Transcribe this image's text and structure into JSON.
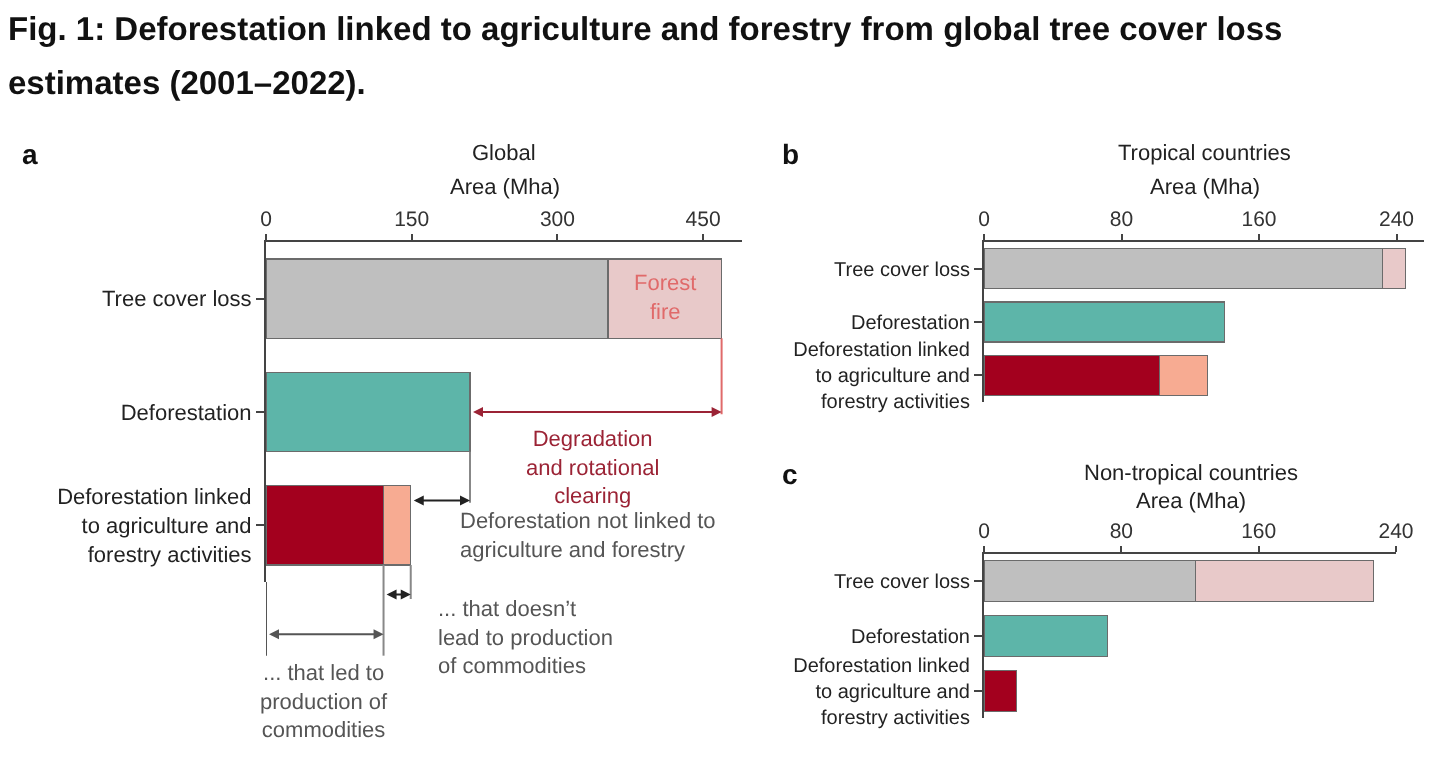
{
  "chart_data": [
    {
      "type": "bar",
      "title": "Global",
      "xlabel": "Area (Mha)",
      "orientation": "horizontal",
      "stacked": true,
      "categories": [
        "Tree cover loss",
        "Deforestation",
        "Deforestation linked to agriculture and forestry activities"
      ],
      "series": [
        {
          "colors": [
            "#bfbfbf",
            "#5db5a9",
            "#a3001e"
          ],
          "values": [
            352,
            210,
            121
          ]
        },
        {
          "colors": [
            "#e8c9c9",
            null,
            "#f7ab92"
          ],
          "values": [
            117,
            null,
            28
          ]
        }
      ],
      "xlim": [
        0,
        490
      ],
      "xticks": [
        0,
        150,
        300,
        450
      ],
      "annotations": [
        "Fig. 1: Deforestation linked to agriculture and forestry from global tree cover loss estimates (2001–2022).",
        "a",
        {
          "text": "Forest fire",
          "x": 410,
          "y": "Tree cover loss"
        },
        "Degradation and rotational clearing",
        {
          "text": "Deforestation not linked to agriculture and forestry",
          "x": 149,
          "y": "Deforestation linked to agriculture and forestry activities"
        },
        "... that doesn’t lead to production of commodities",
        {
          "text": "... that led to production of commodities",
          "x": 121,
          "y": "Deforestation linked to agriculture and forestry activities"
        }
      ]
    },
    {
      "type": "bar",
      "title": "Tropical countries",
      "xlabel": "Area (Mha)",
      "orientation": "horizontal",
      "stacked": true,
      "categories": [
        "Tree cover loss",
        "Deforestation",
        "Deforestation linked to agriculture and forestry activities"
      ],
      "series": [
        {
          "colors": [
            "#bfbfbf",
            "#5db5a9",
            "#a3001e"
          ],
          "values": [
            232,
            140,
            102
          ]
        },
        {
          "colors": [
            "#e8c9c9",
            null,
            "#f7ab92"
          ],
          "values": [
            13,
            null,
            28
          ]
        }
      ],
      "xlim": [
        0,
        256
      ],
      "xticks": [
        0,
        80,
        160,
        240
      ],
      "annotations": [
        "b"
      ]
    },
    {
      "type": "bar",
      "title": "Non-tropical countries",
      "xlabel": "Area (Mha)",
      "orientation": "horizontal",
      "stacked": true,
      "categories": [
        "Tree cover loss",
        "Deforestation",
        "Deforestation linked to agriculture and forestry activities"
      ],
      "series": [
        {
          "colors": [
            "#bfbfbf",
            "#5db5a9",
            "#a3001e"
          ],
          "values": [
            123,
            72,
            19
          ]
        },
        {
          "colors": [
            "#e8c9c9",
            null,
            null
          ],
          "values": [
            104,
            null,
            null
          ]
        }
      ],
      "xlim": [
        0,
        240
      ],
      "xticks": [
        0,
        80,
        160,
        240
      ],
      "annotations": [
        "c"
      ]
    }
  ]
}
